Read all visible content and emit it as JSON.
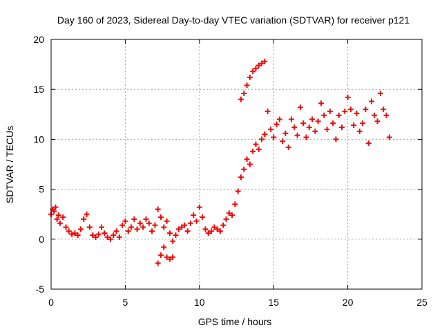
{
  "chart_data": {
    "type": "scatter",
    "title": "Day 160 of 2023, Sidereal Day-to-day VTEC variation (SDTVAR) for receiver p121",
    "xlabel": "GPS time / hours",
    "ylabel": "SDTVAR / TECUs",
    "xlim": [
      0,
      25
    ],
    "ylim": [
      -5,
      20
    ],
    "xticks": [
      0,
      5,
      10,
      15,
      20,
      25
    ],
    "yticks": [
      -5,
      0,
      5,
      10,
      15,
      20
    ],
    "grid": true,
    "marker": "+",
    "series": [
      {
        "name": "SDTVAR",
        "color": "#ff0000",
        "x": [
          0.0,
          0.1,
          0.2,
          0.3,
          0.4,
          0.5,
          0.6,
          0.8,
          1.0,
          1.2,
          1.4,
          1.6,
          1.8,
          2.0,
          2.2,
          2.4,
          2.6,
          2.8,
          3.0,
          3.2,
          3.4,
          3.6,
          3.8,
          4.0,
          4.2,
          4.4,
          4.6,
          4.8,
          5.0,
          5.2,
          5.4,
          5.6,
          5.8,
          6.0,
          6.2,
          6.4,
          6.6,
          6.8,
          7.0,
          7.2,
          7.4,
          7.6,
          7.8,
          8.0,
          8.2,
          8.4,
          8.6,
          8.8,
          9.0,
          9.2,
          9.4,
          9.6,
          9.8,
          10.0,
          10.2,
          10.4,
          10.6,
          10.8,
          11.0,
          11.2,
          11.4,
          11.6,
          11.8,
          12.0,
          12.2,
          12.4,
          12.6,
          12.8,
          13.0,
          13.2,
          13.4,
          13.6,
          13.8,
          14.0,
          14.2,
          14.4,
          14.6,
          14.8,
          15.0,
          15.2,
          15.4,
          15.6,
          15.8,
          16.0,
          16.2,
          16.4,
          16.6,
          16.8,
          17.0,
          17.2,
          17.4,
          17.6,
          17.8,
          18.0,
          18.2,
          18.4,
          18.6,
          18.8,
          19.0,
          19.2,
          19.4,
          19.6,
          19.8,
          20.0,
          20.2,
          20.4,
          20.6,
          20.8,
          21.0,
          21.2,
          21.4,
          21.6,
          21.8,
          22.0,
          22.2,
          22.4,
          22.6,
          22.8,
          7.2,
          7.4,
          7.6,
          7.8,
          8.0,
          8.2,
          12.8,
          13.0,
          13.2,
          13.4,
          13.6,
          13.8,
          14.0,
          14.2,
          14.4
        ],
        "y": [
          2.5,
          3.0,
          2.8,
          3.2,
          2.0,
          2.4,
          1.6,
          2.2,
          1.2,
          0.8,
          0.5,
          0.6,
          0.4,
          1.0,
          2.0,
          2.5,
          1.2,
          0.4,
          0.2,
          0.5,
          1.2,
          0.6,
          0.2,
          0.0,
          0.4,
          0.8,
          0.2,
          1.4,
          1.8,
          0.8,
          1.2,
          2.0,
          1.0,
          1.6,
          1.2,
          2.0,
          1.6,
          0.8,
          1.4,
          3.0,
          2.2,
          1.2,
          1.8,
          0.6,
          -0.2,
          0.4,
          1.0,
          1.2,
          1.4,
          0.8,
          1.6,
          2.4,
          1.8,
          3.2,
          2.2,
          1.0,
          0.6,
          0.8,
          1.2,
          1.0,
          0.8,
          1.4,
          2.0,
          2.6,
          2.4,
          3.5,
          4.8,
          6.2,
          7.0,
          8.0,
          7.5,
          8.8,
          9.5,
          9.0,
          10.0,
          10.5,
          12.8,
          11.0,
          10.2,
          11.5,
          12.0,
          9.8,
          10.6,
          9.2,
          12.0,
          11.2,
          10.4,
          13.2,
          11.6,
          10.2,
          11.2,
          12.0,
          10.8,
          11.8,
          13.6,
          12.4,
          11.0,
          12.8,
          11.6,
          10.0,
          12.4,
          11.2,
          12.8,
          14.2,
          13.0,
          11.4,
          12.6,
          10.8,
          11.6,
          13.0,
          9.6,
          13.8,
          12.4,
          11.8,
          14.6,
          13.0,
          12.4,
          10.2,
          -2.4,
          -1.6,
          -0.8,
          -1.8,
          -2.0,
          -1.8,
          14.0,
          14.6,
          15.4,
          16.2,
          16.8,
          17.1,
          17.4,
          17.6,
          17.8
        ]
      }
    ]
  }
}
